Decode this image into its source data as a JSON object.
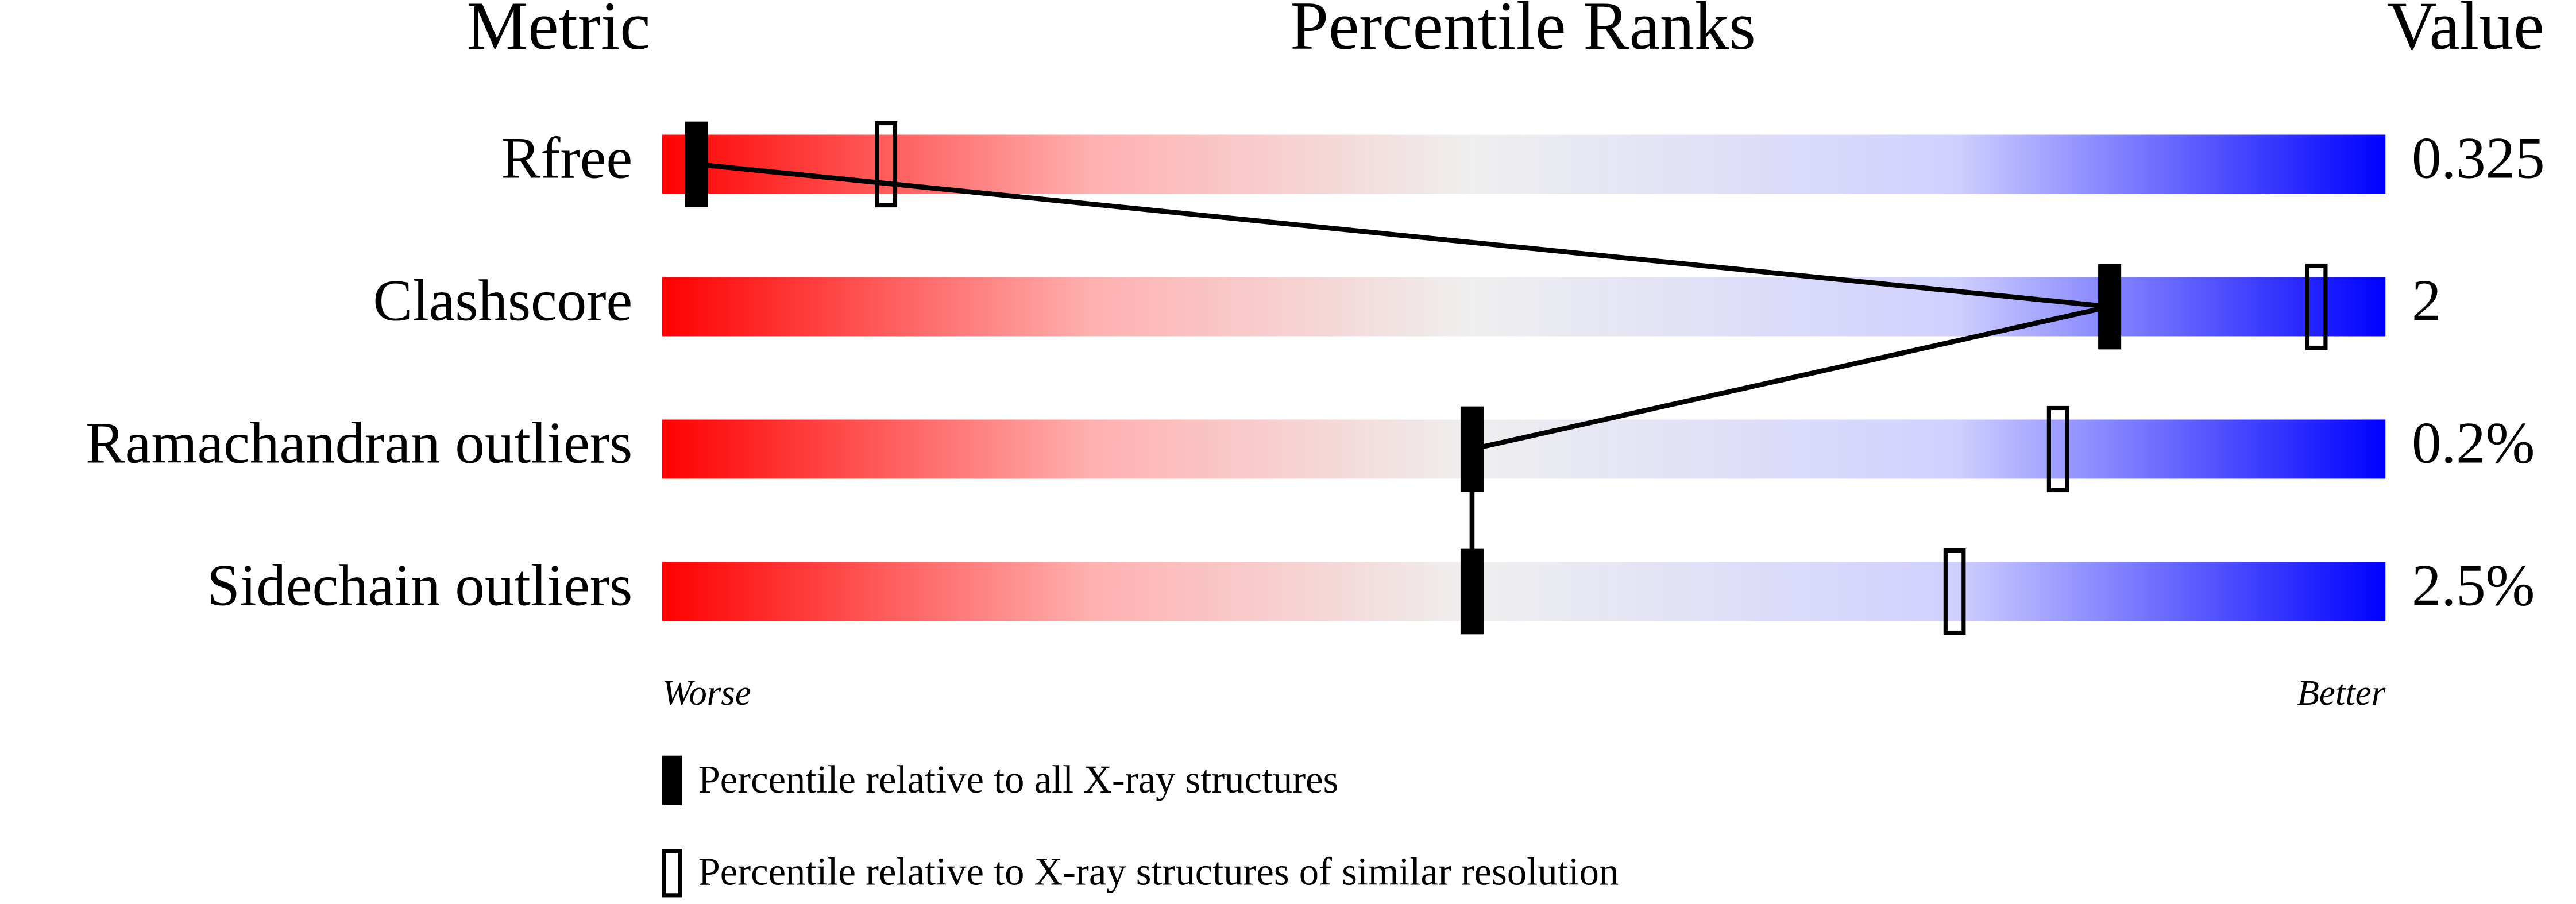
{
  "chart_data": {
    "type": "slider",
    "headers": [
      "Metric",
      "Percentile Ranks",
      "Value"
    ],
    "categories": [
      "Rfree",
      "Clashscore",
      "Ramachandran outliers",
      "Sidechain outliers"
    ],
    "metric_values": [
      "0.325",
      "2",
      "0.2%",
      "2.5%"
    ],
    "xlim": [
      0,
      100
    ],
    "worse_label": "Worse",
    "better_label": "Better",
    "series": [
      {
        "name": "Percentile relative to all X-ray structures",
        "color": "#000000",
        "values": [
          2,
          84,
          47,
          47
        ]
      },
      {
        "name": "Percentile relative to X-ray structures of similar resolution",
        "color": "#000000",
        "values": [
          13,
          96,
          81,
          75
        ]
      }
    ]
  }
}
